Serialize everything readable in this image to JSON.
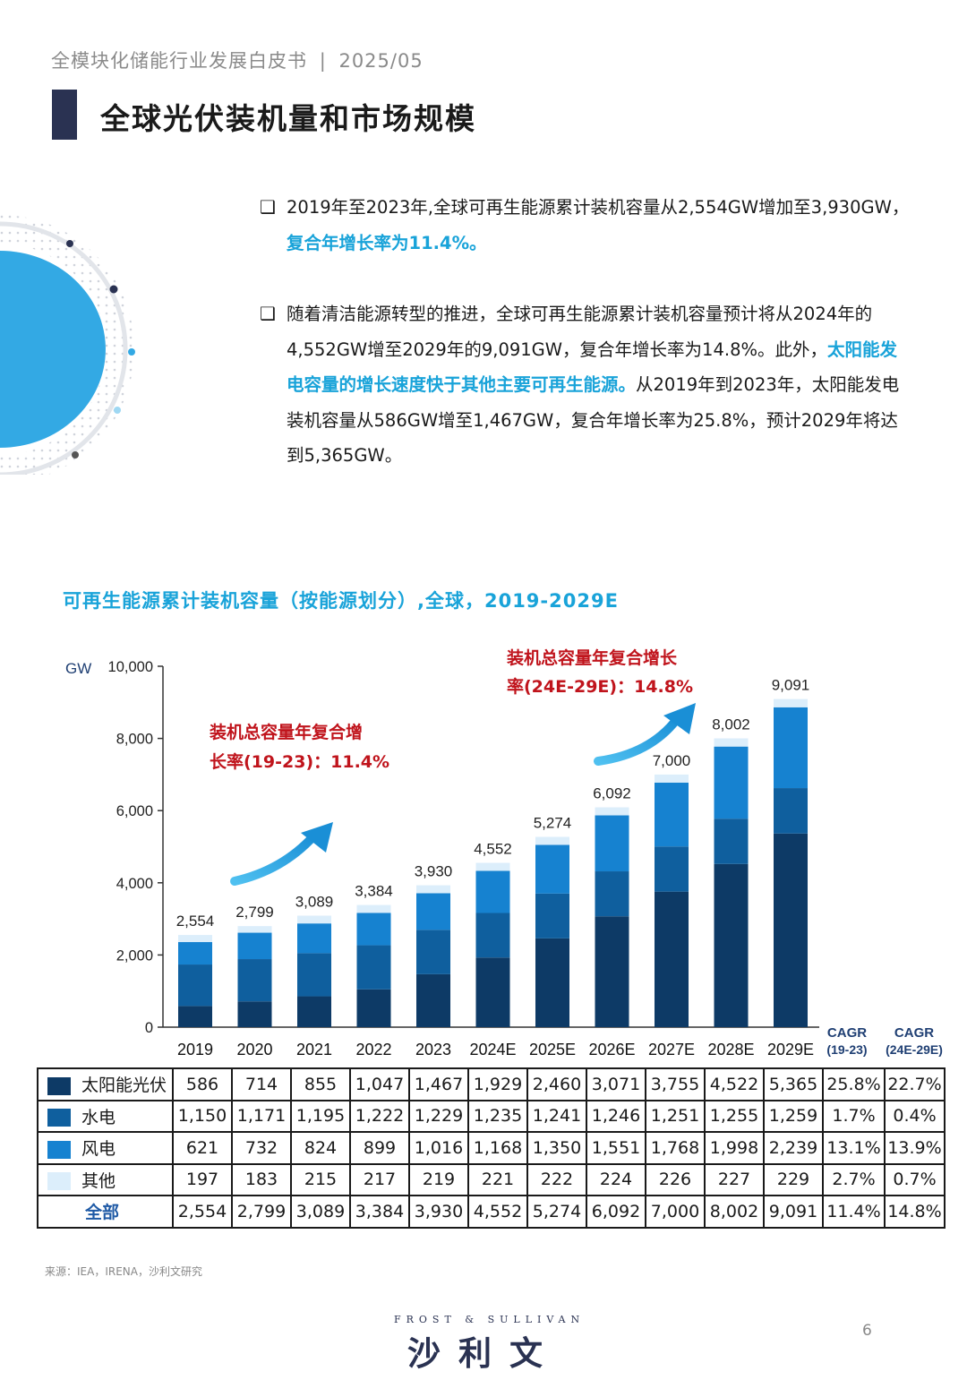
{
  "header": {
    "doc_title": "全模块化储能行业发展白皮书",
    "separator": "|",
    "date": "2025/05"
  },
  "page_title": "全球光伏装机量和市场规模",
  "bullets": [
    {
      "p1": "2019年至2023年,全球可再生能源累计装机容量从2,554GW增加至3,930GW，",
      "h1": "复合年增长率为11.4%。",
      "p2": "",
      "h2": "",
      "p3": ""
    },
    {
      "p1": "随着清洁能源转型的推进，全球可再生能源累计装机容量预计将从2024年的4,552GW增至2029年的9,091GW，复合年增长率为14.8%。此外，",
      "h1": "太阳能发电容量的增长速度快于其他主要可再生能源。",
      "p2": "从2019年到2023年，太阳能发电装机容量从586GW增至1,467GW，复合年增长率为25.8%，预计2029年将达到5,365GW。",
      "h2": "",
      "p3": ""
    }
  ],
  "chart_title": "可再生能源累计装机容量（按能源划分）,全球，2019-2029E",
  "chart_data": {
    "type": "bar",
    "stacked": true,
    "title": "可再生能源累计装机容量（按能源划分）,全球，2019-2029E",
    "ylabel": "GW",
    "ylim": [
      0,
      10000
    ],
    "yticks": [
      0,
      2000,
      4000,
      6000,
      8000,
      10000
    ],
    "ytick_labels": [
      "0",
      "2,000",
      "4,000",
      "6,000",
      "8,000",
      "10,000"
    ],
    "categories": [
      "2019",
      "2020",
      "2021",
      "2022",
      "2023",
      "2024E",
      "2025E",
      "2026E",
      "2027E",
      "2028E",
      "2029E"
    ],
    "series": [
      {
        "name": "太阳能光伏",
        "color": "#0d3a66",
        "values": [
          586,
          714,
          855,
          1047,
          1467,
          1929,
          2460,
          3071,
          3755,
          4522,
          5365
        ],
        "display": [
          "586",
          "714",
          "855",
          "1,047",
          "1,467",
          "1,929",
          "2,460",
          "3,071",
          "3,755",
          "4,522",
          "5,365"
        ],
        "cagr_19_23": "25.8%",
        "cagr_24_29": "22.7%"
      },
      {
        "name": "水电",
        "color": "#0f5f9e",
        "values": [
          1150,
          1171,
          1195,
          1222,
          1229,
          1235,
          1241,
          1246,
          1251,
          1255,
          1259
        ],
        "display": [
          "1,150",
          "1,171",
          "1,195",
          "1,222",
          "1,229",
          "1,235",
          "1,241",
          "1,246",
          "1,251",
          "1,255",
          "1,259"
        ],
        "cagr_19_23": "1.7%",
        "cagr_24_29": "0.4%"
      },
      {
        "name": "风电",
        "color": "#1682d0",
        "values": [
          621,
          732,
          824,
          899,
          1016,
          1168,
          1350,
          1551,
          1768,
          1998,
          2239
        ],
        "display": [
          "621",
          "732",
          "824",
          "899",
          "1,016",
          "1,168",
          "1,350",
          "1,551",
          "1,768",
          "1,998",
          "2,239"
        ],
        "cagr_19_23": "13.1%",
        "cagr_24_29": "13.9%"
      },
      {
        "name": "其他",
        "color": "#dceefb",
        "values": [
          197,
          183,
          215,
          217,
          219,
          221,
          222,
          224,
          226,
          227,
          229
        ],
        "display": [
          "197",
          "183",
          "215",
          "217",
          "219",
          "221",
          "222",
          "224",
          "226",
          "227",
          "229"
        ],
        "cagr_19_23": "2.7%",
        "cagr_24_29": "0.7%"
      }
    ],
    "totals": {
      "name": "全部",
      "values": [
        2554,
        2799,
        3089,
        3384,
        3930,
        4552,
        5274,
        6092,
        7000,
        8002,
        9091
      ],
      "display": [
        "2,554",
        "2,799",
        "3,089",
        "3,384",
        "3,930",
        "4,552",
        "5,274",
        "6,092",
        "7,000",
        "8,002",
        "9,091"
      ],
      "cagr_19_23": "11.4%",
      "cagr_24_29": "14.8%"
    },
    "cagr_headers": [
      {
        "line1": "CAGR",
        "line2": "(19-23)"
      },
      {
        "line1": "CAGR",
        "line2": "(24E-29E)"
      }
    ],
    "annotations": [
      {
        "line1": "装机总容量年复合增",
        "line2": "长率(19-23)：11.4%"
      },
      {
        "line1": "装机总容量年复合增长",
        "line2": "率(24E-29E)：14.8%"
      }
    ]
  },
  "source": "来源：IEA，IRENA，沙利文研究",
  "footer": {
    "brand_en": "FROST & SULLIVAN",
    "brand_cn": "沙利文",
    "page": "6"
  },
  "colors": {
    "accent": "#19a3d9",
    "navy": "#2a3252",
    "annotation_red": "#c0141c"
  }
}
